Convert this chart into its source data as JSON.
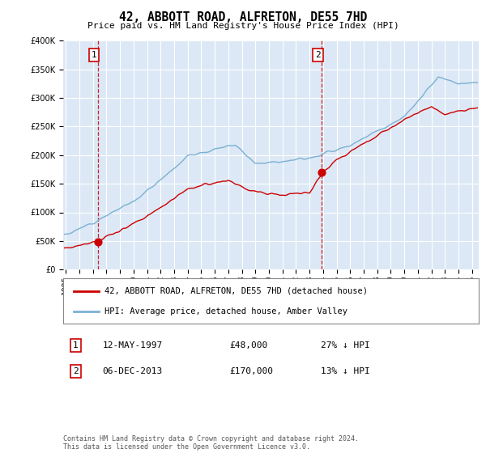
{
  "title": "42, ABBOTT ROAD, ALFRETON, DE55 7HD",
  "subtitle": "Price paid vs. HM Land Registry's House Price Index (HPI)",
  "sale1_label": "1",
  "sale1_date_str": "12-MAY-1997",
  "sale1_price": 48000,
  "sale1_price_str": "£48,000",
  "sale1_pct_str": "27% ↓ HPI",
  "sale1_t": 1997.36,
  "sale2_label": "2",
  "sale2_date_str": "06-DEC-2013",
  "sale2_price": 170000,
  "sale2_price_str": "£170,000",
  "sale2_pct_str": "13% ↓ HPI",
  "sale2_t": 2013.92,
  "legend_house": "42, ABBOTT ROAD, ALFRETON, DE55 7HD (detached house)",
  "legend_hpi": "HPI: Average price, detached house, Amber Valley",
  "footer": "Contains HM Land Registry data © Crown copyright and database right 2024.\nThis data is licensed under the Open Government Licence v3.0.",
  "line_color_house": "#cc0000",
  "line_color_hpi": "#7ab0d4",
  "dashed_color": "#cc0000",
  "fig_bg": "#ffffff",
  "plot_bg": "#dce8f5",
  "ylim": [
    0,
    400000
  ],
  "yticks": [
    0,
    50000,
    100000,
    150000,
    200000,
    250000,
    300000,
    350000,
    400000
  ],
  "xlim_start": 1994.8,
  "xlim_end": 2025.5
}
